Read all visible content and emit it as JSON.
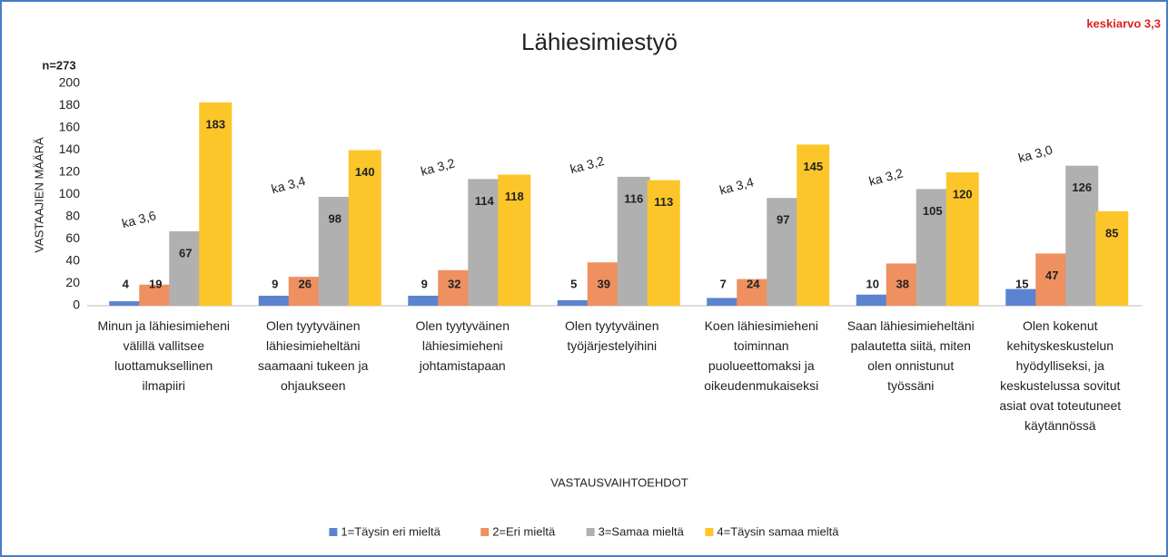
{
  "chart_data": {
    "type": "bar",
    "title": "Lähiesimiestyö",
    "subtitle": "n=273",
    "note": "keskiarvo 3,3",
    "y_label": "VASTAAJIEN MÄÄRÄ",
    "x_label": "VASTAUSVAIHTOEHDOT",
    "categories": [
      "Minun ja lähiesimieheni välillä vallitsee luottamuksellinen ilmapiiri",
      "Olen tyytyväinen lähiesimieheltäni saamaani tukeen ja ohjaukseen",
      "Olen tyytyväinen lähiesimieheni johtamistapaan",
      "Olen tyytyväinen työjärjestelyihini",
      "Koen lähiesimieheni toiminnan puolueettomaksi ja oikeudenmukaiseksi",
      "Saan lähiesimieheltäni palautetta siitä, miten olen onnistunut työssäni",
      "Olen kokenut kehityskeskustelun hyödylliseksi, ja keskustelussa sovitut asiat ovat toteutuneet käytännössä"
    ],
    "annotations": [
      "ka 3,6",
      "ka 3,4",
      "ka 3,2",
      "ka 3,2",
      "ka 3,4",
      "ka 3,2",
      "ka 3,0"
    ],
    "series": [
      {
        "name": "1=Täysin eri mieltä",
        "color": "#5b84d0",
        "values": [
          4,
          9,
          9,
          5,
          7,
          10,
          15
        ]
      },
      {
        "name": "2=Eri mieltä",
        "color": "#ee9060",
        "values": [
          19,
          26,
          32,
          39,
          24,
          38,
          47
        ]
      },
      {
        "name": "3=Samaa mieltä",
        "color": "#b0b0b0",
        "values": [
          67,
          98,
          114,
          116,
          97,
          105,
          126
        ]
      },
      {
        "name": "4=Täysin samaa mieltä",
        "color": "#fcc62a",
        "values": [
          183,
          140,
          118,
          113,
          145,
          120,
          85
        ]
      }
    ],
    "ylim": [
      0,
      200
    ],
    "yticks": [
      0,
      20,
      40,
      60,
      80,
      100,
      120,
      140,
      160,
      180,
      200
    ],
    "grid": false,
    "legend": "bottom"
  }
}
